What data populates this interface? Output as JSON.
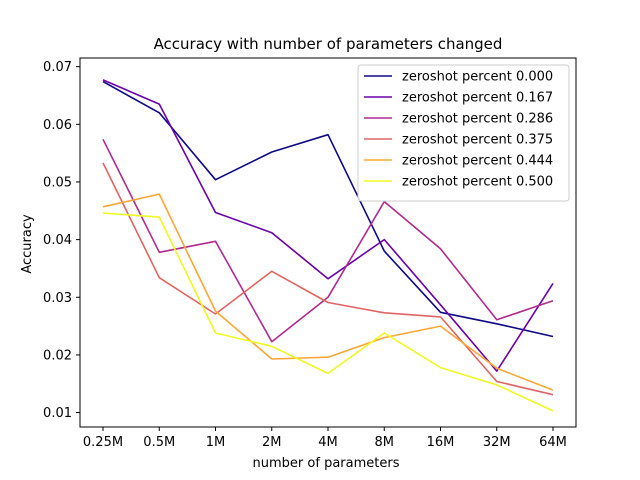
{
  "chart_data": {
    "type": "line",
    "title": "Accuracy with number of parameters changed",
    "xlabel": "number of parameters",
    "ylabel": "Accuracy",
    "categories": [
      "0.25M",
      "0.5M",
      "1M",
      "2M",
      "4M",
      "8M",
      "16M",
      "32M",
      "64M"
    ],
    "y_ticks": [
      "0.01",
      "0.02",
      "0.03",
      "0.04",
      "0.05",
      "0.06",
      "0.07"
    ],
    "ylim": [
      0.0075,
      0.0715
    ],
    "grid": false,
    "legend_position": "top-right",
    "series": [
      {
        "name": "zeroshot percent 0.000",
        "color": "#0d0887",
        "values": [
          0.0674,
          0.062,
          0.0504,
          0.0552,
          0.0582,
          0.038,
          0.0274,
          0.0254,
          0.0232
        ]
      },
      {
        "name": "zeroshot percent 0.167",
        "color": "#6a00a8",
        "values": [
          0.0677,
          0.0635,
          0.0447,
          0.0412,
          0.0332,
          0.04,
          0.0287,
          0.0172,
          0.0324
        ]
      },
      {
        "name": "zeroshot percent 0.286",
        "color": "#b12a90",
        "values": [
          0.0574,
          0.0378,
          0.0397,
          0.0223,
          0.03,
          0.0466,
          0.0384,
          0.0261,
          0.0294
        ]
      },
      {
        "name": "zeroshot percent 0.375",
        "color": "#e16462",
        "values": [
          0.0533,
          0.0334,
          0.0271,
          0.0345,
          0.0291,
          0.0273,
          0.0266,
          0.0154,
          0.0131
        ]
      },
      {
        "name": "zeroshot percent 0.444",
        "color": "#fca636",
        "values": [
          0.0457,
          0.0479,
          0.0276,
          0.0193,
          0.0196,
          0.023,
          0.025,
          0.0177,
          0.0139
        ]
      },
      {
        "name": "zeroshot percent 0.500",
        "color": "#f0f921",
        "values": [
          0.0446,
          0.0439,
          0.0238,
          0.0215,
          0.0168,
          0.0238,
          0.0178,
          0.0148,
          0.0103
        ]
      }
    ]
  }
}
